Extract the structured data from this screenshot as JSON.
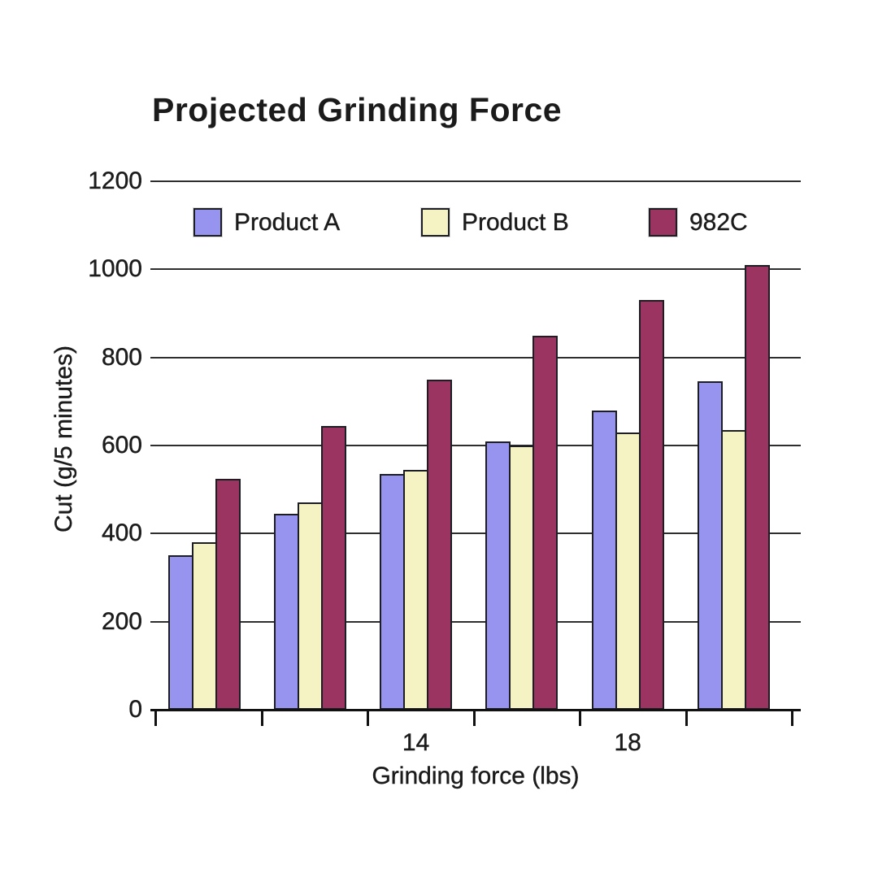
{
  "chart_data": {
    "type": "bar",
    "title": "Projected Grinding Force",
    "xlabel": "Grinding force (lbs)",
    "ylabel": "Cut (g/5 minutes)",
    "ylim": [
      0,
      1200
    ],
    "yticks": [
      0,
      200,
      400,
      600,
      800,
      1000,
      1200
    ],
    "grid": true,
    "legend_position": "top-inside-row",
    "group_count": 6,
    "visible_x_tick_labels": [
      {
        "group_index": 2,
        "label": "14"
      },
      {
        "group_index": 4,
        "label": "18"
      }
    ],
    "series": [
      {
        "name": "Product A",
        "color": "#9694ee",
        "values": [
          350,
          445,
          535,
          610,
          680,
          745
        ]
      },
      {
        "name": "Product B",
        "color": "#f5f3c3",
        "values": [
          380,
          470,
          545,
          600,
          630,
          635
        ]
      },
      {
        "name": "982C",
        "color": "#9c3462",
        "values": [
          525,
          645,
          750,
          850,
          930,
          1010
        ]
      }
    ],
    "colors": {
      "text": "#1b1b1b",
      "gridline": "#2e2e2e",
      "axis": "#111111",
      "bar_border": "#1d1d24",
      "background": "#ffffff"
    }
  }
}
